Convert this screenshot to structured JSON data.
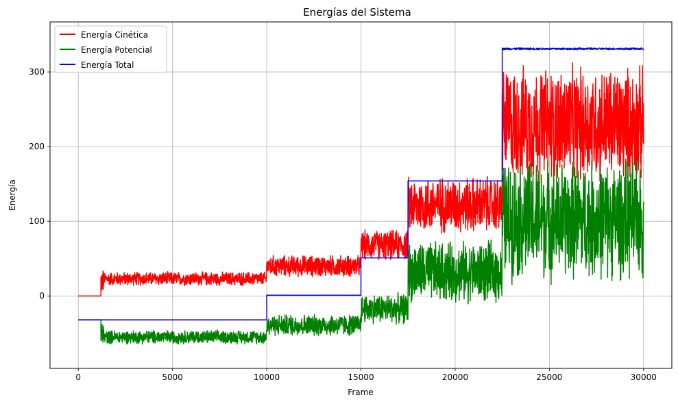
{
  "chart_data": {
    "type": "line",
    "title": "Energías del Sistema",
    "xlabel": "Frame",
    "ylabel": "Energía",
    "xlim": [
      -1500,
      31500
    ],
    "ylim": [
      -97,
      367
    ],
    "grid": true,
    "legend_position": "top-left",
    "x_ticks": [
      0,
      5000,
      10000,
      15000,
      20000,
      25000,
      30000
    ],
    "y_ticks": [
      0,
      100,
      200,
      300
    ],
    "series": [
      {
        "name": "Energía Cinética",
        "color": "#ff0000",
        "segments": [
          {
            "x0": 0,
            "x1": 1200,
            "mean": 0,
            "amp": 0
          },
          {
            "x0": 1200,
            "x1": 1350,
            "mean": 20,
            "amp": 20
          },
          {
            "x0": 1350,
            "x1": 10000,
            "mean": 23,
            "amp": 10
          },
          {
            "x0": 10000,
            "x1": 15000,
            "mean": 40,
            "amp": 16
          },
          {
            "x0": 15000,
            "x1": 17500,
            "mean": 68,
            "amp": 22
          },
          {
            "x0": 17500,
            "x1": 22500,
            "mean": 122,
            "amp": 42
          },
          {
            "x0": 22500,
            "x1": 30000,
            "mean": 230,
            "amp": 85
          }
        ]
      },
      {
        "name": "Energía Potencial",
        "color": "#008000",
        "segments": [
          {
            "x0": 0,
            "x1": 1200,
            "mean": -32,
            "amp": 0
          },
          {
            "x0": 1200,
            "x1": 1350,
            "mean": -52,
            "amp": 20
          },
          {
            "x0": 1350,
            "x1": 10000,
            "mean": -55,
            "amp": 10
          },
          {
            "x0": 10000,
            "x1": 15000,
            "mean": -39,
            "amp": 16
          },
          {
            "x0": 15000,
            "x1": 17500,
            "mean": -17,
            "amp": 22
          },
          {
            "x0": 17500,
            "x1": 22500,
            "mean": 32,
            "amp": 45
          },
          {
            "x0": 22500,
            "x1": 30000,
            "mean": 102,
            "amp": 88
          }
        ]
      },
      {
        "name": "Energía Total",
        "color": "#0000ff",
        "segments": [
          {
            "x0": 0,
            "x1": 10000,
            "mean": -32,
            "amp": 0
          },
          {
            "x0": 10000,
            "x1": 15000,
            "mean": 1,
            "amp": 0
          },
          {
            "x0": 15000,
            "x1": 17500,
            "mean": 51,
            "amp": 0
          },
          {
            "x0": 17500,
            "x1": 22500,
            "mean": 154,
            "amp": 0
          },
          {
            "x0": 22500,
            "x1": 30000,
            "mean": 331,
            "amp": 1.5
          }
        ]
      }
    ]
  }
}
